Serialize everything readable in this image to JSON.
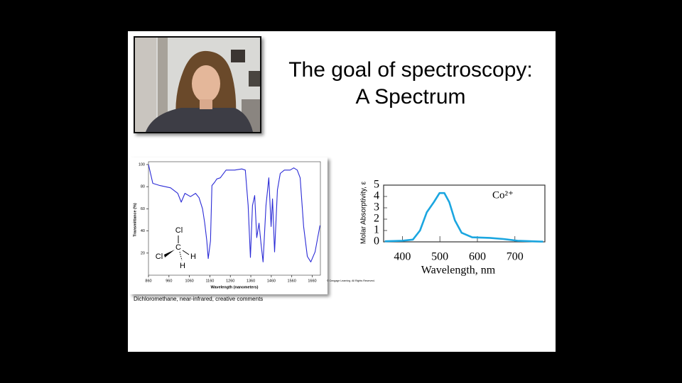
{
  "slide": {
    "title_lines": [
      "The goal of spectroscopy:",
      "A Spectrum"
    ],
    "caption": "Dichloromethane, near-infrared, creative comments",
    "credit": "© Cengage Learning. All Rights Reserved."
  },
  "chart_data": [
    {
      "type": "line",
      "xlabel": "Wavelength (nanometers)",
      "ylabel": "Transmittance (%)",
      "structure_labels": [
        "Cl",
        "Cl",
        "C",
        "H",
        "H"
      ],
      "color": "#2b2bd6",
      "xlim": [
        860,
        1700
      ],
      "ylim": [
        0,
        100
      ],
      "xticks": [
        860,
        960,
        1060,
        1160,
        1260,
        1360,
        1460,
        1560,
        1660
      ],
      "yticks": [
        20,
        40,
        60,
        80,
        100
      ],
      "x": [
        860,
        881,
        916,
        968,
        1003,
        1020,
        1038,
        1065,
        1090,
        1107,
        1124,
        1135,
        1145,
        1152,
        1163,
        1170,
        1183,
        1194,
        1211,
        1239,
        1281,
        1316,
        1333,
        1347,
        1358,
        1368,
        1379,
        1389,
        1400,
        1410,
        1420,
        1434,
        1448,
        1459,
        1466,
        1476,
        1490,
        1504,
        1524,
        1552,
        1570,
        1587,
        1601,
        1618,
        1636,
        1653,
        1674,
        1698
      ],
      "values": [
        100,
        83,
        81,
        79,
        74,
        66,
        74,
        71,
        74,
        70,
        60,
        47,
        31,
        15,
        31,
        81,
        84,
        87,
        88,
        95,
        95,
        96,
        95,
        63,
        16,
        63,
        72,
        34,
        47,
        28,
        12,
        63,
        88,
        44,
        69,
        21,
        77,
        92,
        95,
        95,
        97,
        95,
        88,
        44,
        17,
        12,
        21,
        45
      ]
    },
    {
      "type": "line",
      "xlabel": "Wavelength, nm",
      "ylabel": "Molar Absorptivity, ε",
      "annotation": "Co²⁺",
      "color": "#1ba6e0",
      "xlim": [
        350,
        780
      ],
      "ylim": [
        0,
        5
      ],
      "xticks": [
        400,
        500,
        600,
        700
      ],
      "yticks": [
        0,
        1,
        2,
        3,
        4,
        5
      ],
      "x": [
        353,
        400,
        428,
        447,
        465,
        484,
        499,
        512,
        525,
        540,
        558,
        586,
        633,
        670,
        707,
        775
      ],
      "values": [
        0.05,
        0.1,
        0.2,
        1.0,
        2.6,
        3.5,
        4.3,
        4.3,
        3.5,
        1.9,
        0.8,
        0.4,
        0.35,
        0.25,
        0.1,
        0.02
      ]
    }
  ]
}
